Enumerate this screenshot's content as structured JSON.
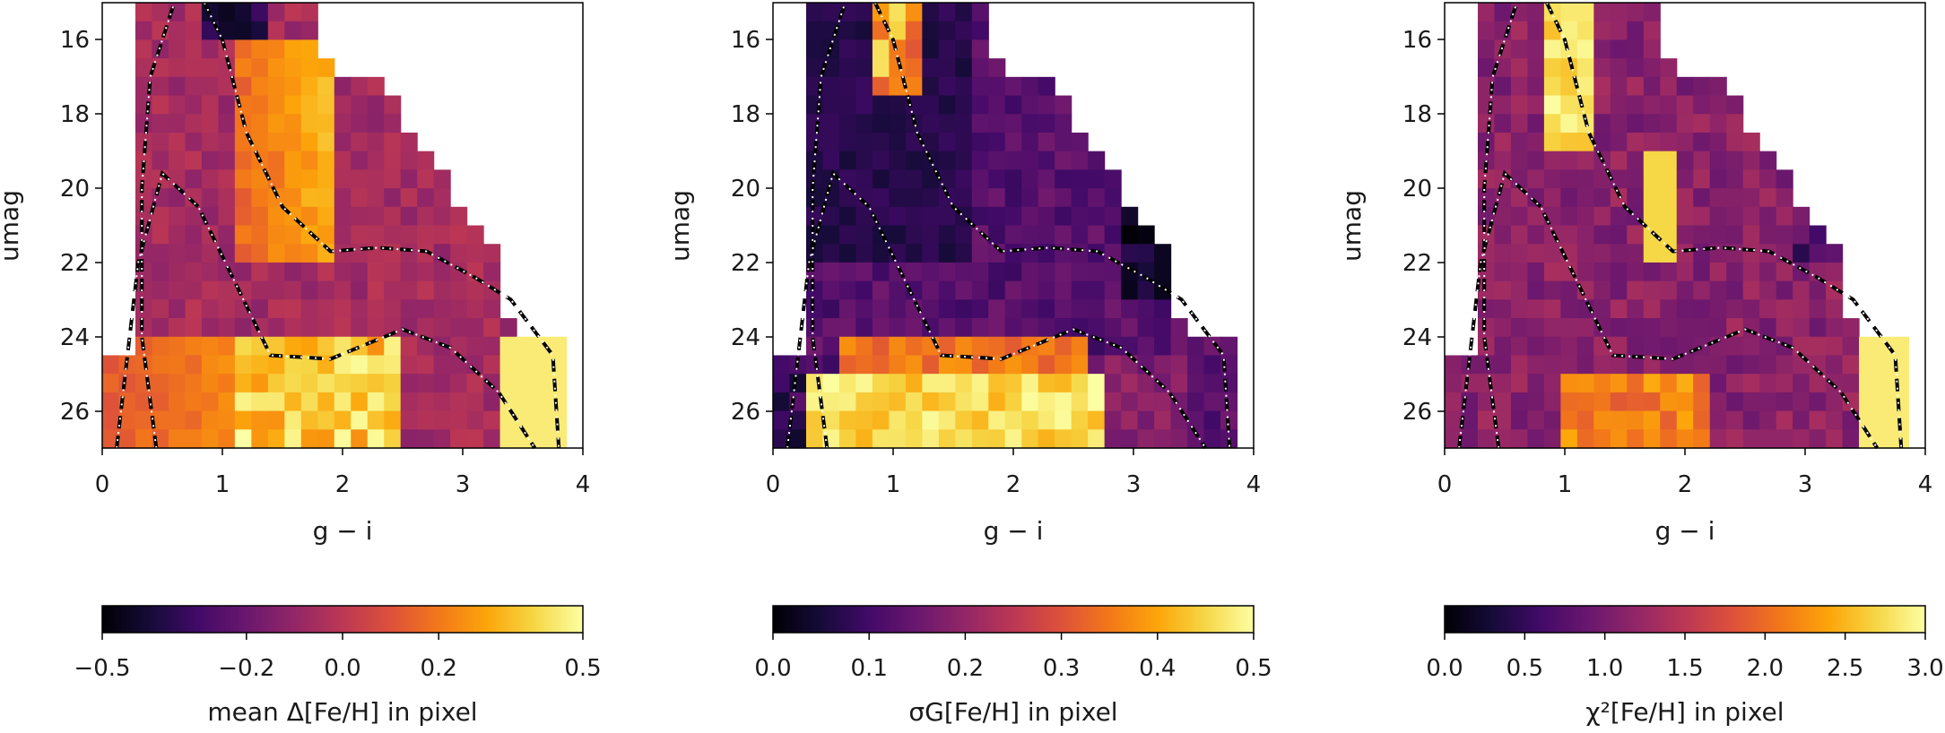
{
  "chart_data": [
    {
      "type": "heatmap",
      "xlabel": "g − i",
      "ylabel": "umag",
      "xlim": [
        0,
        4
      ],
      "ylim": [
        27,
        15
      ],
      "xticks": [
        "0",
        "1",
        "2",
        "3",
        "4"
      ],
      "yticks": [
        "16",
        "18",
        "20",
        "22",
        "24",
        "26"
      ],
      "colorbar": {
        "label": "mean Δ[Fe/H] in pixel",
        "range": [
          -0.5,
          0.5
        ],
        "ticks": [
          "−0.5",
          "−0.2",
          "0.0",
          "0.2",
          "0.5"
        ],
        "tick_values": [
          -0.5,
          -0.2,
          0.0,
          0.2,
          0.5
        ],
        "colormap": "inferno"
      },
      "grid": false,
      "contours": "dashed black-and-white lines"
    },
    {
      "type": "heatmap",
      "xlabel": "g − i",
      "ylabel": "umag",
      "xlim": [
        0,
        4
      ],
      "ylim": [
        27,
        15
      ],
      "xticks": [
        "0",
        "1",
        "2",
        "3",
        "4"
      ],
      "yticks": [
        "16",
        "18",
        "20",
        "22",
        "24",
        "26"
      ],
      "colorbar": {
        "label": "σG[Fe/H] in pixel",
        "range": [
          0.0,
          0.5
        ],
        "ticks": [
          "0.0",
          "0.1",
          "0.2",
          "0.3",
          "0.4",
          "0.5"
        ],
        "tick_values": [
          0.0,
          0.1,
          0.2,
          0.3,
          0.4,
          0.5
        ],
        "colormap": "inferno"
      },
      "grid": false,
      "contours": "dashed black-and-white lines"
    },
    {
      "type": "heatmap",
      "xlabel": "g − i",
      "ylabel": "umag",
      "xlim": [
        0,
        4
      ],
      "ylim": [
        27,
        15
      ],
      "xticks": [
        "0",
        "1",
        "2",
        "3",
        "4"
      ],
      "yticks": [
        "16",
        "18",
        "20",
        "22",
        "24",
        "26"
      ],
      "colorbar": {
        "label": "χ²[Fe/H] in pixel",
        "range": [
          0.0,
          3.0
        ],
        "ticks": [
          "0.0",
          "0.5",
          "1.0",
          "1.5",
          "2.0",
          "2.5",
          "3.0"
        ],
        "tick_values": [
          0.0,
          0.5,
          1.0,
          1.5,
          2.0,
          2.5,
          3.0
        ],
        "colormap": "inferno"
      },
      "grid": false,
      "contours": "dashed black-and-white lines"
    }
  ]
}
